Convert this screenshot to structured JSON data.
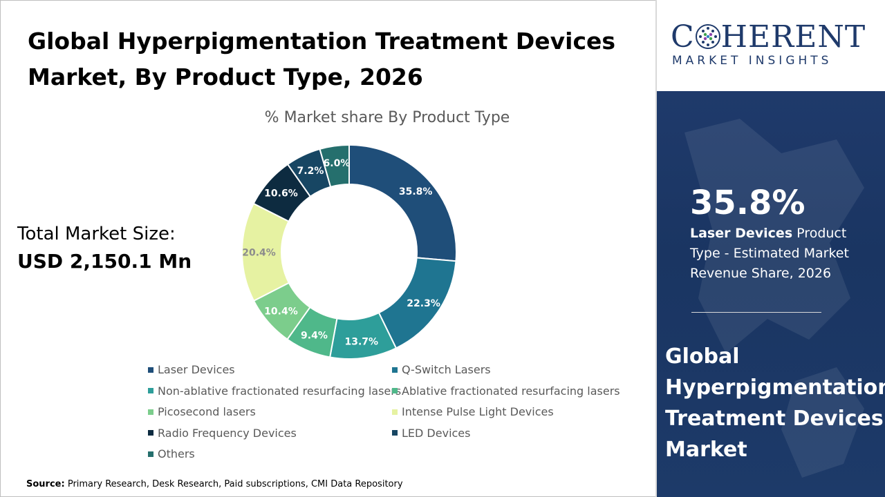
{
  "title": {
    "line1": "Global Hyperpigmentation Treatment Devices",
    "line2": "Market, By Product Type, 2026"
  },
  "total_market": {
    "label": "Total Market Size:",
    "value": "USD 2,150.1 Mn"
  },
  "brand": {
    "name_start": "C",
    "name_end": "HERENT",
    "subtitle": "MARKET INSIGHTS",
    "color": "#1f3a6b"
  },
  "highlight": {
    "value": "35.8%",
    "segment": "Laser Devices",
    "description": "Product Type - Estimated Market Revenue Share, 2026"
  },
  "side_title": "Global Hyperpigmentation Treatment Devices Market",
  "source": {
    "label": "Source:",
    "text": "Primary Research, Desk Research, Paid subscriptions, CMI Data Repository"
  },
  "chart_data": {
    "type": "pie",
    "title": "% Market share By Product Type",
    "donut": true,
    "legend_position": "bottom",
    "categories": [
      "Laser Devices",
      "Q-Switch Lasers",
      "Non-ablative fractionated resurfacing lasers",
      "Ablative fractionated resurfacing lasers",
      "Picosecond lasers",
      "Intense Pulse Light Devices",
      "Radio Frequency Devices",
      "LED Devices",
      "Others"
    ],
    "values": [
      35.8,
      22.3,
      13.7,
      9.4,
      10.4,
      20.4,
      10.6,
      7.2,
      6.0
    ],
    "labels": [
      "35.8%",
      "22.3%",
      "13.7%",
      "9.4%",
      "10.4%",
      "20.4%",
      "10.6%",
      "7.2%",
      "6.0%"
    ],
    "colors": [
      "#1f4e79",
      "#1f7591",
      "#2e9e9a",
      "#4fb88a",
      "#7ccd8c",
      "#e6f2a2",
      "#0d2b40",
      "#174663",
      "#256f6d"
    ],
    "label_colors": [
      "#ffffff",
      "#ffffff",
      "#ffffff",
      "#ffffff",
      "#ffffff",
      "#8c8c8c",
      "#ffffff",
      "#ffffff",
      "#ffffff"
    ]
  }
}
